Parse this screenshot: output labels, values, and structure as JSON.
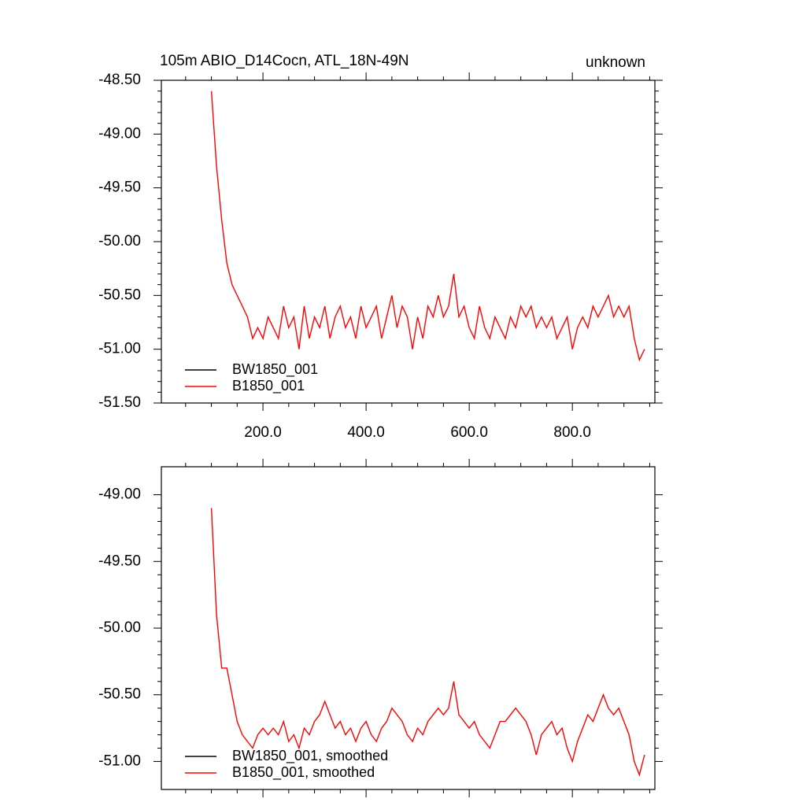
{
  "chart_data": [
    {
      "type": "line",
      "title": "105m ABIO_D14Cocn, ATL_18N-49N",
      "subtitle": "unknown",
      "x": [
        100,
        110,
        120,
        130,
        140,
        150,
        160,
        170,
        180,
        190,
        200,
        210,
        220,
        230,
        240,
        250,
        260,
        270,
        280,
        290,
        300,
        310,
        320,
        330,
        340,
        350,
        360,
        370,
        380,
        390,
        400,
        410,
        420,
        430,
        440,
        450,
        460,
        470,
        480,
        490,
        500,
        510,
        520,
        530,
        540,
        550,
        560,
        570,
        580,
        590,
        600,
        610,
        620,
        630,
        640,
        650,
        660,
        670,
        680,
        690,
        700,
        710,
        720,
        730,
        740,
        750,
        760,
        770,
        780,
        790,
        800,
        810,
        820,
        830,
        840,
        850,
        860,
        870,
        880,
        890,
        900,
        910,
        920,
        930,
        940
      ],
      "series": [
        {
          "name": "BW1850_001",
          "color": "#000000",
          "values": [
            null,
            null,
            null,
            null,
            null,
            null,
            null,
            null,
            null,
            null,
            null,
            null,
            null,
            null,
            null,
            null,
            null,
            null,
            null,
            null,
            null,
            null,
            null,
            null,
            null,
            null,
            null,
            null,
            null,
            null,
            null,
            null,
            null,
            null,
            null,
            null,
            null,
            null,
            null,
            null,
            null,
            null,
            null,
            null,
            null,
            null,
            null,
            null,
            null,
            null,
            null,
            null,
            null,
            null,
            null,
            null,
            null,
            null,
            null,
            null,
            null,
            null,
            null,
            null,
            null,
            null,
            null,
            null,
            null,
            null,
            null,
            null,
            null,
            null,
            null,
            null,
            null,
            null,
            null,
            null,
            null,
            null,
            null,
            null,
            null
          ]
        },
        {
          "name": "B1850_001",
          "color": "#ff0000",
          "values": [
            -48.6,
            -49.3,
            -49.8,
            -50.2,
            -50.4,
            -50.5,
            -50.6,
            -50.7,
            -50.9,
            -50.8,
            -50.9,
            -50.7,
            -50.8,
            -50.9,
            -50.6,
            -50.8,
            -50.7,
            -51.0,
            -50.6,
            -50.9,
            -50.7,
            -50.8,
            -50.6,
            -50.9,
            -50.7,
            -50.6,
            -50.8,
            -50.7,
            -50.9,
            -50.6,
            -50.8,
            -50.7,
            -50.6,
            -50.9,
            -50.7,
            -50.5,
            -50.8,
            -50.6,
            -50.7,
            -51.0,
            -50.7,
            -50.9,
            -50.6,
            -50.7,
            -50.5,
            -50.7,
            -50.6,
            -50.3,
            -50.7,
            -50.6,
            -50.8,
            -50.9,
            -50.6,
            -50.8,
            -50.9,
            -50.7,
            -50.8,
            -50.9,
            -50.7,
            -50.8,
            -50.6,
            -50.7,
            -50.6,
            -50.8,
            -50.7,
            -50.8,
            -50.7,
            -50.9,
            -50.8,
            -50.7,
            -51.0,
            -50.8,
            -50.7,
            -50.8,
            -50.6,
            -50.7,
            -50.6,
            -50.5,
            -50.7,
            -50.6,
            -50.7,
            -50.6,
            -50.9,
            -51.1,
            -51.0
          ]
        }
      ],
      "xlim": [
        3,
        960
      ],
      "ylim": [
        -51.5,
        -48.5
      ],
      "xticks": [
        {
          "value": 200,
          "label": "200.0"
        },
        {
          "value": 400,
          "label": "400.0"
        },
        {
          "value": 600,
          "label": "600.0"
        },
        {
          "value": 800,
          "label": "800.0"
        }
      ],
      "yticks": [
        {
          "value": -48.5,
          "label": "-48.50"
        },
        {
          "value": -49,
          "label": "-49.00"
        },
        {
          "value": -49.5,
          "label": "-49.50"
        },
        {
          "value": -50,
          "label": "-50.00"
        },
        {
          "value": -50.5,
          "label": "-50.50"
        },
        {
          "value": -51,
          "label": "-51.00"
        },
        {
          "value": -51.5,
          "label": "-51.50"
        }
      ],
      "legend": "lower left"
    },
    {
      "type": "line",
      "x": [
        100,
        110,
        120,
        130,
        140,
        150,
        160,
        170,
        180,
        190,
        200,
        210,
        220,
        230,
        240,
        250,
        260,
        270,
        280,
        290,
        300,
        310,
        320,
        330,
        340,
        350,
        360,
        370,
        380,
        390,
        400,
        410,
        420,
        430,
        440,
        450,
        460,
        470,
        480,
        490,
        500,
        510,
        520,
        530,
        540,
        550,
        560,
        570,
        580,
        590,
        600,
        610,
        620,
        630,
        640,
        650,
        660,
        670,
        680,
        690,
        700,
        710,
        720,
        730,
        740,
        750,
        760,
        770,
        780,
        790,
        800,
        810,
        820,
        830,
        840,
        850,
        860,
        870,
        880,
        890,
        900,
        910,
        920,
        930,
        940
      ],
      "series": [
        {
          "name": "BW1850_001, smoothed",
          "color": "#000000",
          "values": [
            null,
            null,
            null,
            null,
            null,
            null,
            null,
            null,
            null,
            null,
            null,
            null,
            null,
            null,
            null,
            null,
            null,
            null,
            null,
            null,
            null,
            null,
            null,
            null,
            null,
            null,
            null,
            null,
            null,
            null,
            null,
            null,
            null,
            null,
            null,
            null,
            null,
            null,
            null,
            null,
            null,
            null,
            null,
            null,
            null,
            null,
            null,
            null,
            null,
            null,
            null,
            null,
            null,
            null,
            null,
            null,
            null,
            null,
            null,
            null,
            null,
            null,
            null,
            null,
            null,
            null,
            null,
            null,
            null,
            null,
            null,
            null,
            null,
            null,
            null,
            null,
            null,
            null,
            null,
            null,
            null,
            null,
            null,
            null,
            null
          ]
        },
        {
          "name": "B1850_001, smoothed",
          "color": "#ff0000",
          "values": [
            -49.1,
            -49.9,
            -50.3,
            -50.3,
            -50.5,
            -50.7,
            -50.8,
            -50.85,
            -50.9,
            -50.8,
            -50.75,
            -50.8,
            -50.75,
            -50.8,
            -50.7,
            -50.85,
            -50.8,
            -50.9,
            -50.75,
            -50.8,
            -50.7,
            -50.65,
            -50.55,
            -50.65,
            -50.75,
            -50.7,
            -50.8,
            -50.75,
            -50.85,
            -50.75,
            -50.7,
            -50.8,
            -50.85,
            -50.75,
            -50.7,
            -50.6,
            -50.65,
            -50.7,
            -50.8,
            -50.85,
            -50.75,
            -50.8,
            -50.7,
            -50.65,
            -50.6,
            -50.65,
            -50.6,
            -50.4,
            -50.65,
            -50.7,
            -50.75,
            -50.7,
            -50.8,
            -50.85,
            -50.9,
            -50.8,
            -50.7,
            -50.7,
            -50.65,
            -50.6,
            -50.65,
            -50.7,
            -50.8,
            -50.95,
            -50.8,
            -50.75,
            -50.7,
            -50.8,
            -50.75,
            -50.9,
            -51.0,
            -50.85,
            -50.75,
            -50.65,
            -50.7,
            -50.6,
            -50.5,
            -50.6,
            -50.65,
            -50.6,
            -50.7,
            -50.8,
            -51.0,
            -51.1,
            -50.95
          ]
        }
      ],
      "xlim": [
        3,
        960
      ],
      "ylim": [
        -51.21,
        -48.79
      ],
      "xticks": [
        200,
        400,
        600,
        800
      ],
      "yticks": [
        {
          "value": -49,
          "label": "-49.00"
        },
        {
          "value": -49.5,
          "label": "-49.50"
        },
        {
          "value": -50,
          "label": "-50.00"
        },
        {
          "value": -50.5,
          "label": "-50.50"
        },
        {
          "value": -51,
          "label": "-51.00"
        }
      ],
      "legend": "lower left"
    }
  ]
}
